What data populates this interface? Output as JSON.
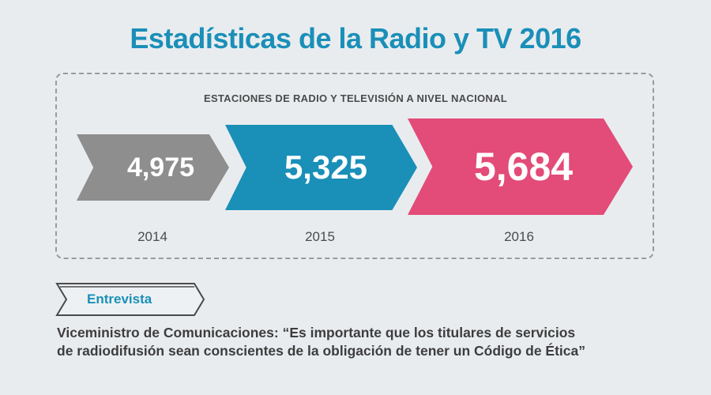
{
  "header": {
    "title": "Estadísticas de la Radio y TV 2016"
  },
  "stats": {
    "subtitle": "ESTACIONES DE RADIO Y TELEVISIÓN A NIVEL NACIONAL",
    "items": [
      {
        "year": "2014",
        "value": "4,975",
        "color": "#8e8e8e"
      },
      {
        "year": "2015",
        "value": "5,325",
        "color": "#1a8fb8"
      },
      {
        "year": "2016",
        "value": "5,684",
        "color": "#e34b78"
      }
    ]
  },
  "interview": {
    "tag": "Entrevista",
    "line1": "Viceministro de Comunicaciones: “Es importante que los titulares de servicios",
    "line2": "de radiodifusión sean conscientes de la obligación de tener un Código de Ética”"
  }
}
